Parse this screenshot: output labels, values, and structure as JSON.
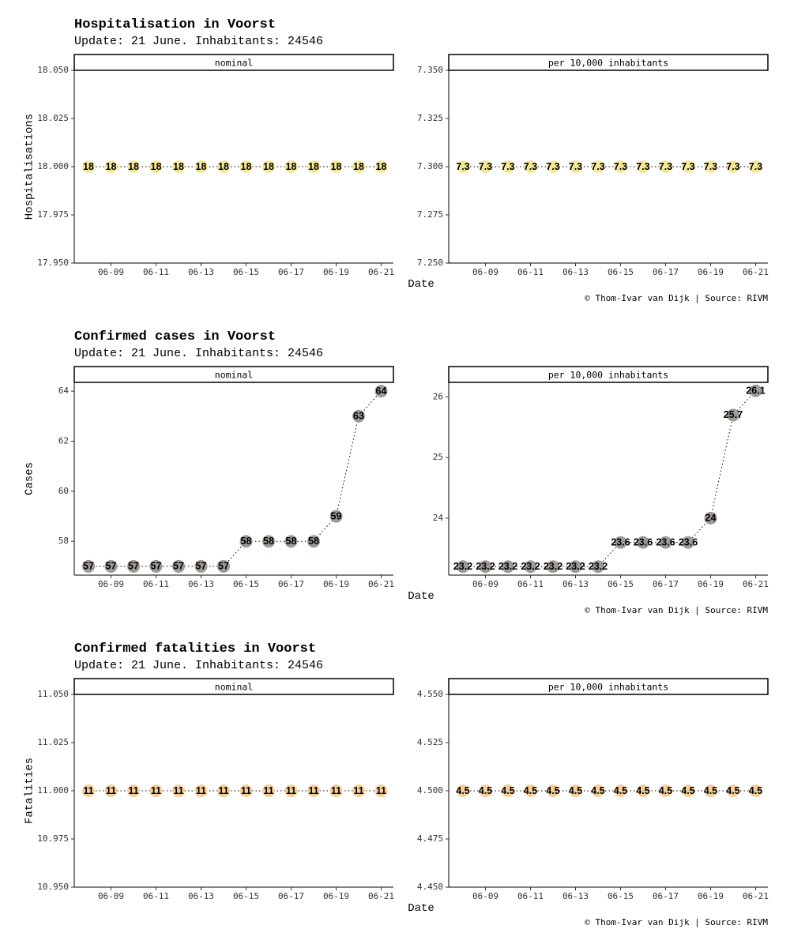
{
  "caption": "© Thom-Ivar van Dijk | Source: RIVM",
  "chart_data": [
    {
      "type": "line",
      "title": "Hospitalisation in Voorst",
      "subtitle": "Update: 21 June. Inhabitants: 24546",
      "ylabel": "Hospitalisations",
      "xlabel": "Date",
      "point_color": "#f4e99a",
      "x": [
        "06-08",
        "06-09",
        "06-10",
        "06-11",
        "06-12",
        "06-13",
        "06-14",
        "06-15",
        "06-16",
        "06-17",
        "06-18",
        "06-19",
        "06-20",
        "06-21"
      ],
      "x_ticks": [
        "06-09",
        "06-11",
        "06-13",
        "06-15",
        "06-17",
        "06-19",
        "06-21"
      ],
      "panels": [
        {
          "strip": "nominal",
          "ylim": [
            17.95,
            18.05
          ],
          "y_ticks": [
            "17.950",
            "17.975",
            "18.000",
            "18.025",
            "18.050"
          ],
          "values": [
            18,
            18,
            18,
            18,
            18,
            18,
            18,
            18,
            18,
            18,
            18,
            18,
            18,
            18
          ],
          "labels": [
            "18",
            "18",
            "18",
            "18",
            "18",
            "18",
            "18",
            "18",
            "18",
            "18",
            "18",
            "18",
            "18",
            "18"
          ]
        },
        {
          "strip": "per 10,000 inhabitants",
          "ylim": [
            7.25,
            7.35
          ],
          "y_ticks": [
            "7.250",
            "7.275",
            "7.300",
            "7.325",
            "7.350"
          ],
          "values": [
            7.3,
            7.3,
            7.3,
            7.3,
            7.3,
            7.3,
            7.3,
            7.3,
            7.3,
            7.3,
            7.3,
            7.3,
            7.3,
            7.3
          ],
          "labels": [
            "7.3",
            "7.3",
            "7.3",
            "7.3",
            "7.3",
            "7.3",
            "7.3",
            "7.3",
            "7.3",
            "7.3",
            "7.3",
            "7.3",
            "7.3",
            "7.3"
          ]
        }
      ]
    },
    {
      "type": "line",
      "title": "Confirmed cases in Voorst",
      "subtitle": "Update: 21 June. Inhabitants: 24546",
      "ylabel": "Cases",
      "xlabel": "Date",
      "point_color": "#a09a97",
      "x": [
        "06-08",
        "06-09",
        "06-10",
        "06-11",
        "06-12",
        "06-13",
        "06-14",
        "06-15",
        "06-16",
        "06-17",
        "06-18",
        "06-19",
        "06-20",
        "06-21"
      ],
      "x_ticks": [
        "06-09",
        "06-11",
        "06-13",
        "06-15",
        "06-17",
        "06-19",
        "06-21"
      ],
      "panels": [
        {
          "strip": "nominal",
          "ylim": [
            56.65,
            64.35
          ],
          "y_ticks": [
            "58",
            "60",
            "62",
            "64"
          ],
          "values": [
            57,
            57,
            57,
            57,
            57,
            57,
            57,
            58,
            58,
            58,
            58,
            59,
            63,
            64
          ],
          "labels": [
            "57",
            "57",
            "57",
            "57",
            "57",
            "57",
            "57",
            "58",
            "58",
            "58",
            "58",
            "59",
            "63",
            "64"
          ]
        },
        {
          "strip": "per 10,000 inhabitants",
          "ylim": [
            23.06,
            26.24
          ],
          "y_ticks": [
            "24",
            "25",
            "26"
          ],
          "values": [
            23.2,
            23.2,
            23.2,
            23.2,
            23.2,
            23.2,
            23.2,
            23.6,
            23.6,
            23.6,
            23.6,
            24,
            25.7,
            26.1
          ],
          "labels": [
            "23.2",
            "23.2",
            "23.2",
            "23.2",
            "23.2",
            "23.2",
            "23.2",
            "23.6",
            "23.6",
            "23.6",
            "23.6",
            "24",
            "25.7",
            "26.1"
          ]
        }
      ]
    },
    {
      "type": "line",
      "title": "Confirmed fatalities in Voorst",
      "subtitle": "Update: 21 June. Inhabitants: 24546",
      "ylabel": "Fatalities",
      "xlabel": "Date",
      "point_color": "#f3cf9b",
      "x": [
        "06-08",
        "06-09",
        "06-10",
        "06-11",
        "06-12",
        "06-13",
        "06-14",
        "06-15",
        "06-16",
        "06-17",
        "06-18",
        "06-19",
        "06-20",
        "06-21"
      ],
      "x_ticks": [
        "06-09",
        "06-11",
        "06-13",
        "06-15",
        "06-17",
        "06-19",
        "06-21"
      ],
      "panels": [
        {
          "strip": "nominal",
          "ylim": [
            10.95,
            11.05
          ],
          "y_ticks": [
            "10.950",
            "10.975",
            "11.000",
            "11.025",
            "11.050"
          ],
          "values": [
            11,
            11,
            11,
            11,
            11,
            11,
            11,
            11,
            11,
            11,
            11,
            11,
            11,
            11
          ],
          "labels": [
            "11",
            "11",
            "11",
            "11",
            "11",
            "11",
            "11",
            "11",
            "11",
            "11",
            "11",
            "11",
            "11",
            "11"
          ]
        },
        {
          "strip": "per 10,000 inhabitants",
          "ylim": [
            4.45,
            4.55
          ],
          "y_ticks": [
            "4.450",
            "4.475",
            "4.500",
            "4.525",
            "4.550"
          ],
          "values": [
            4.5,
            4.5,
            4.5,
            4.5,
            4.5,
            4.5,
            4.5,
            4.5,
            4.5,
            4.5,
            4.5,
            4.5,
            4.5,
            4.5
          ],
          "labels": [
            "4.5",
            "4.5",
            "4.5",
            "4.5",
            "4.5",
            "4.5",
            "4.5",
            "4.5",
            "4.5",
            "4.5",
            "4.5",
            "4.5",
            "4.5",
            "4.5"
          ]
        }
      ]
    }
  ]
}
